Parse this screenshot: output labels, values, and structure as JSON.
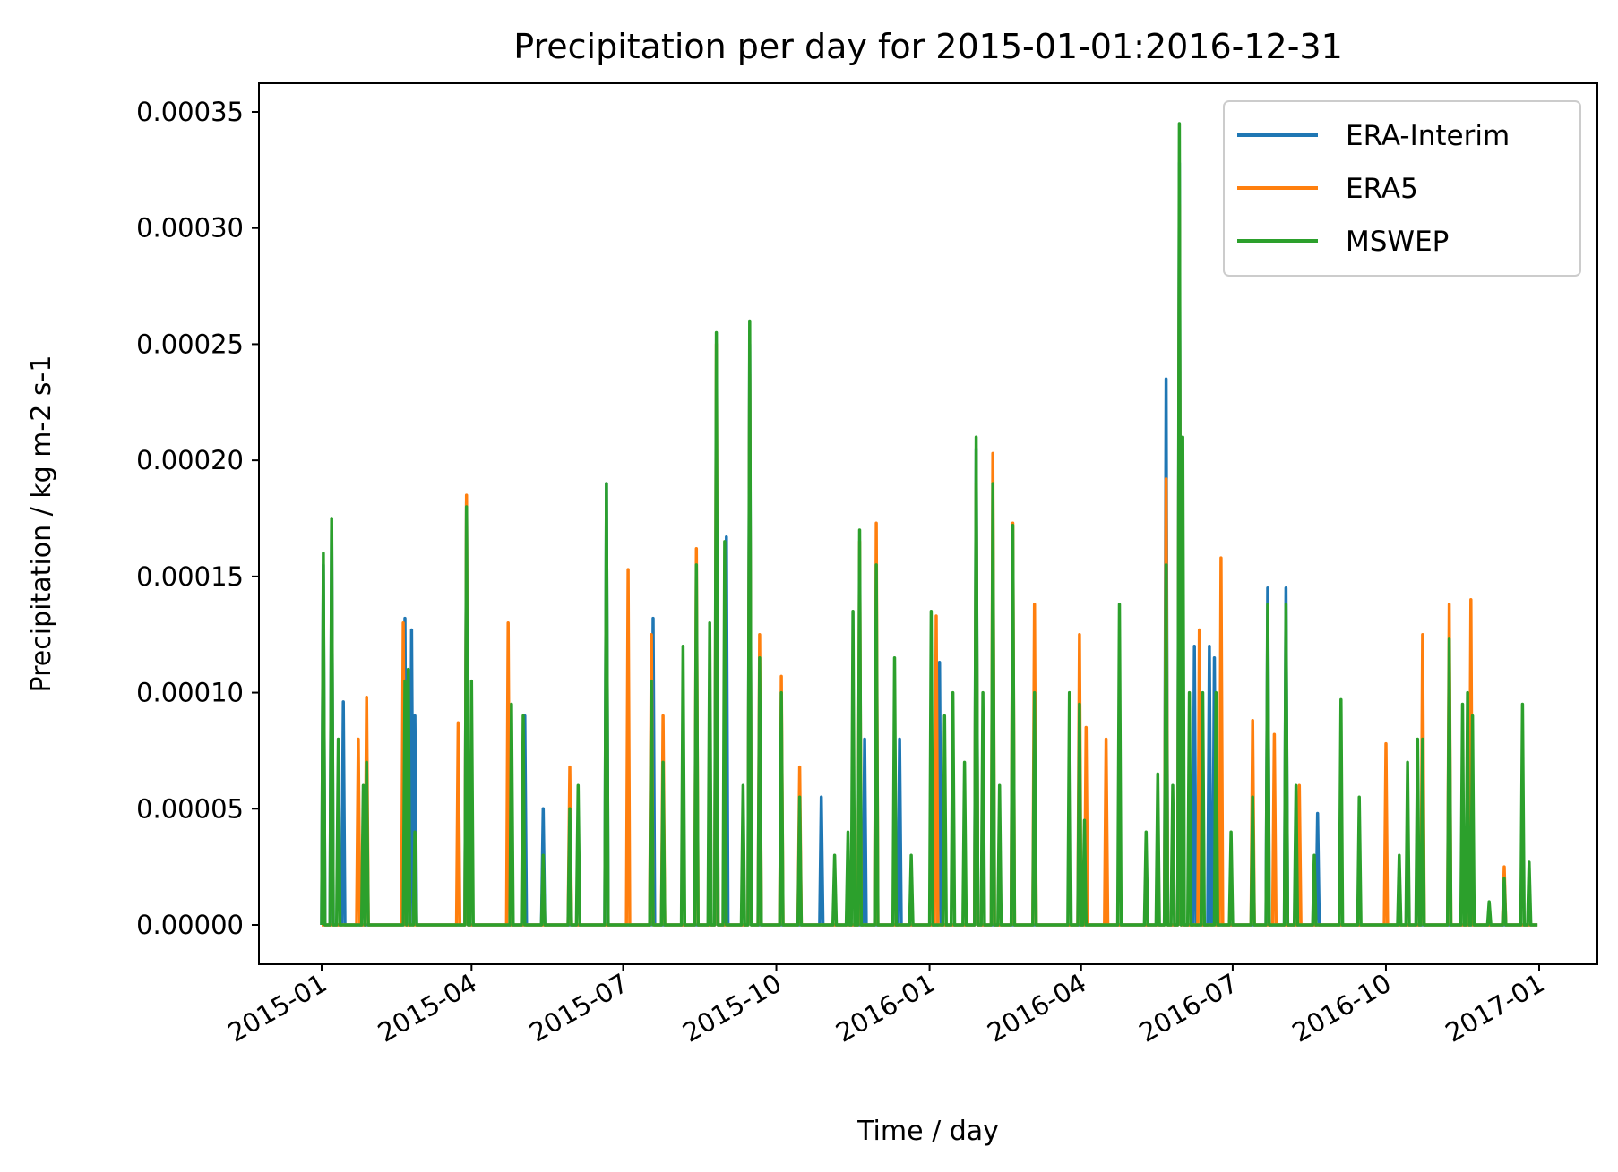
{
  "chart_data": {
    "type": "line",
    "title": "Precipitation per day for 2015-01-01:2016-12-31",
    "xlabel": "Time / day",
    "ylabel": "Precipitation / kg m-2 s-1",
    "xlim": [
      "2014-12-19",
      "2017-01-14"
    ],
    "ylim": [
      -1.75e-05,
      0.000362
    ],
    "x_ticks": [
      "2015-01",
      "2015-04",
      "2015-07",
      "2015-10",
      "2016-01",
      "2016-04",
      "2016-07",
      "2016-10",
      "2017-01"
    ],
    "y_ticks": [
      "0.00000",
      "0.00005",
      "0.00010",
      "0.00015",
      "0.00020",
      "0.00025",
      "0.00030",
      "0.00035"
    ],
    "grid": false,
    "legend_position": "top-right",
    "x_range": [
      "2015-01-01",
      "2016-12-31"
    ],
    "note_values": "daily series; listed points are peaks, other days approximately 0",
    "series": [
      {
        "name": "ERA-Interim",
        "color": "#1f77b4",
        "points": [
          [
            "2015-01-02",
            0.000155
          ],
          [
            "2015-01-07",
            0.00017
          ],
          [
            "2015-01-14",
            9.6e-05
          ],
          [
            "2015-02-20",
            0.000132
          ],
          [
            "2015-02-24",
            0.000127
          ],
          [
            "2015-02-26",
            9e-05
          ],
          [
            "2015-03-29",
            0.000182
          ],
          [
            "2015-05-03",
            9e-05
          ],
          [
            "2015-05-14",
            5e-05
          ],
          [
            "2015-06-21",
            0.00019
          ],
          [
            "2015-07-19",
            0.000132
          ],
          [
            "2015-08-26",
            0.00021
          ],
          [
            "2015-09-01",
            0.000167
          ],
          [
            "2015-09-15",
            0.00025
          ],
          [
            "2015-10-28",
            5.5e-05
          ],
          [
            "2015-11-23",
            8e-05
          ],
          [
            "2015-12-14",
            8e-05
          ],
          [
            "2016-01-07",
            0.000113
          ],
          [
            "2016-01-29",
            0.000205
          ],
          [
            "2016-05-22",
            0.000235
          ],
          [
            "2016-05-30",
            0.000328
          ],
          [
            "2016-06-08",
            0.00012
          ],
          [
            "2016-06-17",
            0.00012
          ],
          [
            "2016-06-20",
            0.000115
          ],
          [
            "2016-07-22",
            0.000145
          ],
          [
            "2016-08-02",
            0.000145
          ],
          [
            "2016-08-21",
            4.8e-05
          ]
        ]
      },
      {
        "name": "ERA5",
        "color": "#ff7f0e",
        "points": [
          [
            "2015-01-23",
            8e-05
          ],
          [
            "2015-01-28",
            9.8e-05
          ],
          [
            "2015-02-19",
            0.00013
          ],
          [
            "2015-03-24",
            8.7e-05
          ],
          [
            "2015-03-29",
            0.000185
          ],
          [
            "2015-04-23",
            0.00013
          ],
          [
            "2015-05-30",
            6.8e-05
          ],
          [
            "2015-07-04",
            0.000153
          ],
          [
            "2015-07-18",
            0.000125
          ],
          [
            "2015-07-25",
            9e-05
          ],
          [
            "2015-08-14",
            0.000162
          ],
          [
            "2015-08-26",
            0.00025
          ],
          [
            "2015-09-15",
            0.000237
          ],
          [
            "2015-09-21",
            0.000125
          ],
          [
            "2015-10-04",
            0.000107
          ],
          [
            "2015-10-15",
            6.8e-05
          ],
          [
            "2015-11-20",
            0.000165
          ],
          [
            "2015-11-30",
            0.000173
          ],
          [
            "2016-01-05",
            0.000133
          ],
          [
            "2016-01-29",
            0.00019
          ],
          [
            "2016-02-08",
            0.000203
          ],
          [
            "2016-02-20",
            0.000173
          ],
          [
            "2016-03-04",
            0.000138
          ],
          [
            "2016-03-31",
            0.000125
          ],
          [
            "2016-04-04",
            8.5e-05
          ],
          [
            "2016-04-16",
            8e-05
          ],
          [
            "2016-05-22",
            0.000192
          ],
          [
            "2016-05-30",
            0.00031
          ],
          [
            "2016-06-11",
            0.000127
          ],
          [
            "2016-06-24",
            0.000158
          ],
          [
            "2016-07-13",
            8.8e-05
          ],
          [
            "2016-07-26",
            8.2e-05
          ],
          [
            "2016-08-10",
            6e-05
          ],
          [
            "2016-10-01",
            7.8e-05
          ],
          [
            "2016-10-23",
            0.000125
          ],
          [
            "2016-11-08",
            0.000138
          ],
          [
            "2016-11-21",
            0.00014
          ],
          [
            "2016-12-11",
            2.5e-05
          ]
        ]
      },
      {
        "name": "MSWEP",
        "color": "#2ca02c",
        "points": [
          [
            "2015-01-02",
            0.00016
          ],
          [
            "2015-01-07",
            0.000175
          ],
          [
            "2015-01-11",
            8e-05
          ],
          [
            "2015-01-26",
            6e-05
          ],
          [
            "2015-01-28",
            7e-05
          ],
          [
            "2015-02-20",
            0.000105
          ],
          [
            "2015-02-22",
            0.00011
          ],
          [
            "2015-02-26",
            4e-05
          ],
          [
            "2015-03-29",
            0.00018
          ],
          [
            "2015-04-01",
            0.000105
          ],
          [
            "2015-04-25",
            9.5e-05
          ],
          [
            "2015-05-02",
            9e-05
          ],
          [
            "2015-05-14",
            3e-05
          ],
          [
            "2015-05-30",
            5e-05
          ],
          [
            "2015-06-04",
            6e-05
          ],
          [
            "2015-06-21",
            0.00019
          ],
          [
            "2015-07-18",
            0.000105
          ],
          [
            "2015-07-25",
            7e-05
          ],
          [
            "2015-08-06",
            0.00012
          ],
          [
            "2015-08-14",
            0.000155
          ],
          [
            "2015-08-22",
            0.00013
          ],
          [
            "2015-08-26",
            0.000255
          ],
          [
            "2015-08-31",
            0.000165
          ],
          [
            "2015-09-11",
            6e-05
          ],
          [
            "2015-09-15",
            0.00026
          ],
          [
            "2015-09-21",
            0.000115
          ],
          [
            "2015-10-04",
            0.0001
          ],
          [
            "2015-10-15",
            5.5e-05
          ],
          [
            "2015-11-05",
            3e-05
          ],
          [
            "2015-11-13",
            4e-05
          ],
          [
            "2015-11-16",
            0.000135
          ],
          [
            "2015-11-20",
            0.00017
          ],
          [
            "2015-11-30",
            0.000155
          ],
          [
            "2015-12-11",
            0.000115
          ],
          [
            "2015-12-21",
            3e-05
          ],
          [
            "2016-01-02",
            0.000135
          ],
          [
            "2016-01-10",
            9e-05
          ],
          [
            "2016-01-15",
            0.0001
          ],
          [
            "2016-01-22",
            7e-05
          ],
          [
            "2016-01-29",
            0.00021
          ],
          [
            "2016-02-02",
            0.0001
          ],
          [
            "2016-02-08",
            0.00019
          ],
          [
            "2016-02-12",
            6e-05
          ],
          [
            "2016-02-20",
            0.000172
          ],
          [
            "2016-03-04",
            0.0001
          ],
          [
            "2016-03-25",
            0.0001
          ],
          [
            "2016-03-31",
            9.5e-05
          ],
          [
            "2016-04-03",
            4.5e-05
          ],
          [
            "2016-04-24",
            0.000138
          ],
          [
            "2016-05-10",
            4e-05
          ],
          [
            "2016-05-17",
            6.5e-05
          ],
          [
            "2016-05-22",
            0.000155
          ],
          [
            "2016-05-26",
            6e-05
          ],
          [
            "2016-05-30",
            0.000345
          ],
          [
            "2016-06-01",
            0.00021
          ],
          [
            "2016-06-05",
            0.0001
          ],
          [
            "2016-06-13",
            0.0001
          ],
          [
            "2016-06-21",
            0.0001
          ],
          [
            "2016-06-30",
            4e-05
          ],
          [
            "2016-07-13",
            5.5e-05
          ],
          [
            "2016-07-22",
            0.000138
          ],
          [
            "2016-08-02",
            0.000138
          ],
          [
            "2016-08-08",
            6e-05
          ],
          [
            "2016-08-19",
            3e-05
          ],
          [
            "2016-09-04",
            9.7e-05
          ],
          [
            "2016-09-15",
            5.5e-05
          ],
          [
            "2016-10-09",
            3e-05
          ],
          [
            "2016-10-14",
            7e-05
          ],
          [
            "2016-10-20",
            8e-05
          ],
          [
            "2016-10-23",
            8e-05
          ],
          [
            "2016-11-08",
            0.000123
          ],
          [
            "2016-11-16",
            9.5e-05
          ],
          [
            "2016-11-19",
            0.0001
          ],
          [
            "2016-11-22",
            9e-05
          ],
          [
            "2016-12-02",
            1e-05
          ],
          [
            "2016-12-11",
            2e-05
          ],
          [
            "2016-12-22",
            9.5e-05
          ],
          [
            "2016-12-26",
            2.7e-05
          ]
        ]
      }
    ]
  }
}
